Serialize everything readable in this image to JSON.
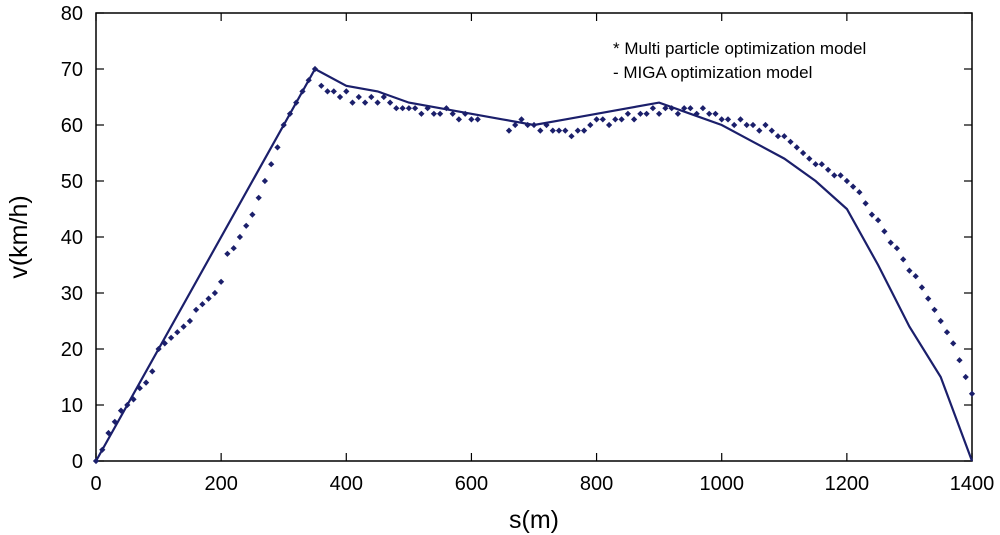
{
  "chart_data": {
    "type": "line",
    "xlabel": "s(m)",
    "ylabel": "v(km/h)",
    "xlim": [
      0,
      1400
    ],
    "ylim": [
      0,
      80
    ],
    "xticks": [
      0,
      200,
      400,
      600,
      800,
      1000,
      1200,
      1400
    ],
    "yticks": [
      0,
      10,
      20,
      30,
      40,
      50,
      60,
      70,
      80
    ],
    "legend_position": "top-right",
    "legend": [
      "* Multi particle optimization model",
      "- MIGA optimization model"
    ],
    "colors": {
      "series": "#1b1f6b",
      "axis": "#000000",
      "background": "#ffffff"
    },
    "series": [
      {
        "name": "Multi particle optimization model",
        "style": "dotted",
        "x": [
          0,
          10,
          20,
          30,
          40,
          50,
          60,
          70,
          80,
          90,
          100,
          110,
          120,
          130,
          140,
          150,
          160,
          170,
          180,
          190,
          200,
          210,
          220,
          230,
          240,
          250,
          260,
          270,
          280,
          290,
          300,
          310,
          320,
          330,
          340,
          350,
          360,
          370,
          380,
          390,
          400,
          410,
          420,
          430,
          440,
          450,
          460,
          470,
          480,
          490,
          500,
          510,
          520,
          530,
          540,
          550,
          560,
          570,
          580,
          590,
          600,
          610,
          620,
          630,
          640,
          650,
          660,
          670,
          680,
          690,
          700,
          710,
          720,
          730,
          740,
          750,
          760,
          770,
          780,
          790,
          800,
          810,
          820,
          830,
          840,
          850,
          860,
          870,
          880,
          890,
          900,
          910,
          920,
          930,
          940,
          950,
          960,
          970,
          980,
          990,
          1000,
          1010,
          1020,
          1030,
          1040,
          1050,
          1060,
          1070,
          1080,
          1090,
          1100,
          1110,
          1120,
          1130,
          1140,
          1150,
          1160,
          1170,
          1180,
          1190,
          1200,
          1210,
          1220,
          1230,
          1240,
          1250,
          1260,
          1270,
          1280,
          1290,
          1300,
          1310,
          1320,
          1330,
          1340,
          1350,
          1360,
          1370,
          1380,
          1390,
          1400
        ],
        "values": [
          0,
          2,
          5,
          7,
          9,
          10,
          11,
          13,
          14,
          16,
          20,
          21,
          22,
          23,
          24,
          25,
          27,
          28,
          29,
          30,
          32,
          37,
          38,
          40,
          42,
          44,
          47,
          50,
          53,
          56,
          60,
          62,
          64,
          66,
          68,
          70,
          67,
          66,
          66,
          65,
          66,
          64,
          65,
          64,
          65,
          64,
          65,
          64,
          63,
          63,
          63,
          63,
          62,
          63,
          62,
          62,
          63,
          62,
          61,
          62,
          61,
          61,
          null,
          null,
          null,
          null,
          59,
          60,
          61,
          60,
          60,
          59,
          60,
          59,
          59,
          59,
          58,
          59,
          59,
          60,
          61,
          61,
          60,
          61,
          61,
          62,
          61,
          62,
          62,
          63,
          62,
          63,
          63,
          62,
          63,
          63,
          62,
          63,
          62,
          62,
          61,
          61,
          60,
          61,
          60,
          60,
          59,
          60,
          59,
          58,
          58,
          57,
          56,
          55,
          54,
          53,
          53,
          52,
          51,
          51,
          50,
          49,
          48,
          46,
          44,
          43,
          41,
          39,
          38,
          36,
          34,
          33,
          31,
          29,
          27,
          25,
          23,
          21,
          18,
          15,
          12
        ]
      },
      {
        "name": "MIGA optimization model",
        "style": "solid",
        "x": [
          0,
          350,
          400,
          450,
          500,
          550,
          600,
          650,
          700,
          750,
          800,
          850,
          900,
          950,
          1000,
          1050,
          1100,
          1150,
          1200,
          1250,
          1300,
          1350,
          1400
        ],
        "values": [
          0,
          70,
          67,
          66,
          64,
          63,
          62,
          61,
          60,
          61,
          62,
          63,
          64,
          62,
          60,
          57,
          54,
          50,
          45,
          35,
          24,
          15,
          0
        ]
      }
    ]
  }
}
